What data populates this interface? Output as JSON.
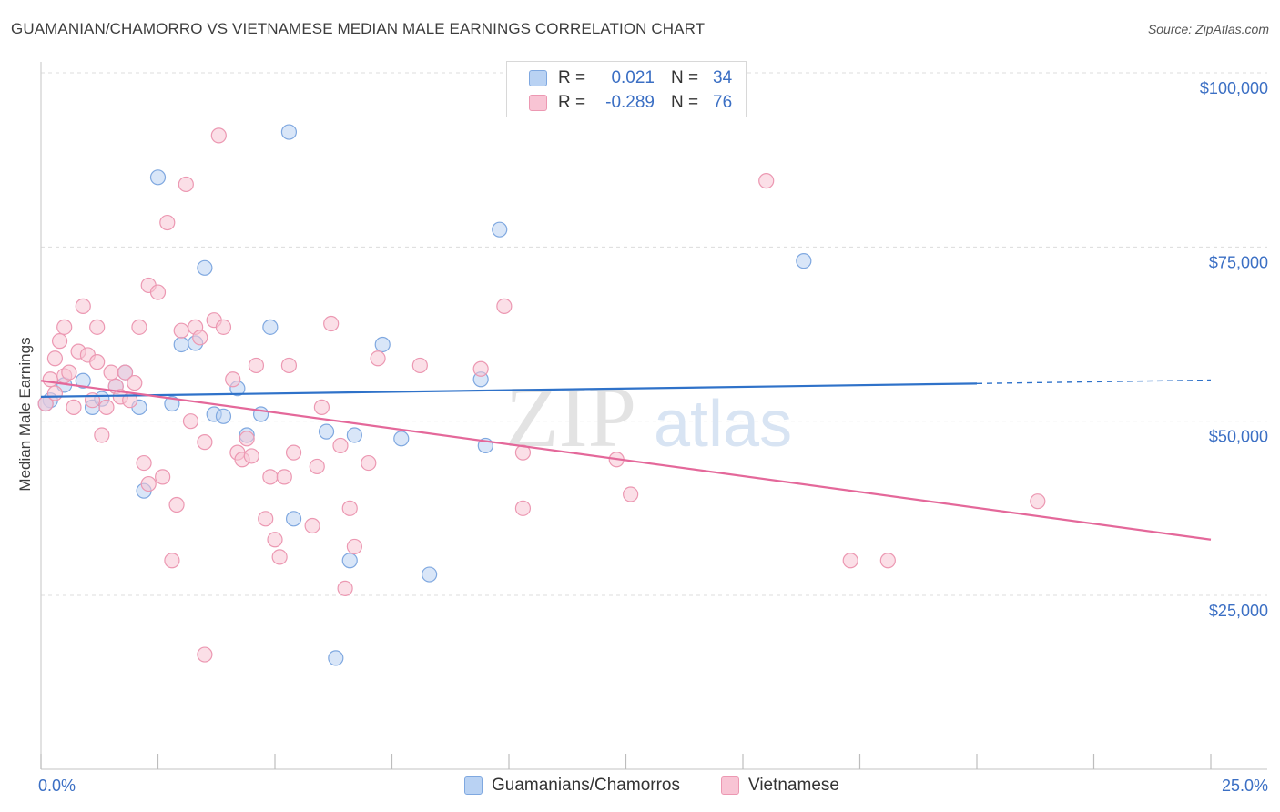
{
  "title": "GUAMANIAN/CHAMORRO VS VIETNAMESE MEDIAN MALE EARNINGS CORRELATION CHART",
  "source": "Source: ZipAtlas.com",
  "watermark": {
    "zip": "ZIP",
    "atlas": "atlas"
  },
  "colors": {
    "blue_fill": "#b9d2f3",
    "blue_stroke": "#7fa8e0",
    "blue_line": "#2f72c9",
    "pink_fill": "#f8c4d4",
    "pink_stroke": "#ec98b2",
    "pink_line": "#e4689a",
    "axis_text": "#3b6fc4"
  },
  "legend": {
    "rows": [
      {
        "r_label": "R =",
        "r_value": "0.021",
        "n_label": "N =",
        "n_value": "34"
      },
      {
        "r_label": "R =",
        "r_value": "-0.289",
        "n_label": "N =",
        "n_value": "76"
      }
    ]
  },
  "bottom_legend": {
    "series1": "Guamanians/Chamorros",
    "series2": "Vietnamese"
  },
  "chart_data": {
    "type": "scatter",
    "title": "GUAMANIAN/CHAMORRO VS VIETNAMESE MEDIAN MALE EARNINGS CORRELATION CHART",
    "xlabel": "",
    "ylabel": "Median Male Earnings",
    "xlim": [
      0,
      25
    ],
    "ylim": [
      5000,
      105000
    ],
    "x_tick_labels": [
      "0.0%",
      "25.0%"
    ],
    "y_ticks": [
      {
        "value": 25000,
        "label": "$25,000"
      },
      {
        "value": 50000,
        "label": "$50,000"
      },
      {
        "value": 75000,
        "label": "$75,000"
      },
      {
        "value": 100000,
        "label": "$100,000"
      }
    ],
    "grid": true,
    "series": [
      {
        "name": "Guamanians/Chamorros",
        "color": "blue",
        "trend": {
          "x0": 0,
          "y0": 53500,
          "x1": 20,
          "y1": 55400,
          "dash_to": 25,
          "dash_y": 55900
        },
        "points": [
          [
            0.2,
            53000
          ],
          [
            0.5,
            55200
          ],
          [
            0.9,
            55800
          ],
          [
            1.1,
            52000
          ],
          [
            1.3,
            53200
          ],
          [
            1.6,
            55000
          ],
          [
            1.8,
            57000
          ],
          [
            2.1,
            52000
          ],
          [
            2.2,
            40000
          ],
          [
            2.5,
            85000
          ],
          [
            2.8,
            52500
          ],
          [
            3.0,
            61000
          ],
          [
            3.3,
            61200
          ],
          [
            3.5,
            72000
          ],
          [
            3.7,
            51000
          ],
          [
            3.9,
            50700
          ],
          [
            4.2,
            54700
          ],
          [
            4.4,
            48000
          ],
          [
            4.7,
            51000
          ],
          [
            4.9,
            63500
          ],
          [
            5.3,
            91500
          ],
          [
            5.4,
            36000
          ],
          [
            6.1,
            48500
          ],
          [
            6.3,
            16000
          ],
          [
            6.6,
            30000
          ],
          [
            6.7,
            48000
          ],
          [
            7.3,
            61000
          ],
          [
            7.7,
            47500
          ],
          [
            8.3,
            28000
          ],
          [
            9.4,
            56000
          ],
          [
            9.5,
            46500
          ],
          [
            9.8,
            77500
          ],
          [
            16.3,
            73000
          ],
          [
            0.1,
            52500
          ]
        ]
      },
      {
        "name": "Vietnamese",
        "color": "pink",
        "trend": {
          "x0": 0,
          "y0": 55800,
          "x1": 25,
          "y1": 33000
        },
        "points": [
          [
            0.1,
            52500
          ],
          [
            0.2,
            56000
          ],
          [
            0.3,
            59000
          ],
          [
            0.4,
            61500
          ],
          [
            0.5,
            63500
          ],
          [
            0.5,
            56500
          ],
          [
            0.6,
            57000
          ],
          [
            0.7,
            52000
          ],
          [
            0.8,
            60000
          ],
          [
            0.9,
            66500
          ],
          [
            1.0,
            59500
          ],
          [
            1.1,
            53000
          ],
          [
            1.2,
            58500
          ],
          [
            1.2,
            63500
          ],
          [
            1.3,
            48000
          ],
          [
            1.4,
            52000
          ],
          [
            1.5,
            57000
          ],
          [
            1.6,
            55000
          ],
          [
            1.7,
            53500
          ],
          [
            1.8,
            57000
          ],
          [
            1.9,
            53000
          ],
          [
            2.0,
            55500
          ],
          [
            2.1,
            63500
          ],
          [
            2.2,
            44000
          ],
          [
            2.3,
            41000
          ],
          [
            2.3,
            69500
          ],
          [
            2.5,
            68500
          ],
          [
            2.6,
            42000
          ],
          [
            2.7,
            78500
          ],
          [
            2.8,
            30000
          ],
          [
            2.9,
            38000
          ],
          [
            3.0,
            63000
          ],
          [
            3.1,
            84000
          ],
          [
            3.2,
            50000
          ],
          [
            3.3,
            63500
          ],
          [
            3.4,
            62000
          ],
          [
            3.5,
            47000
          ],
          [
            3.5,
            16500
          ],
          [
            3.7,
            64500
          ],
          [
            3.8,
            91000
          ],
          [
            3.9,
            63500
          ],
          [
            4.1,
            56000
          ],
          [
            4.2,
            45500
          ],
          [
            4.3,
            44500
          ],
          [
            4.4,
            47500
          ],
          [
            4.5,
            45000
          ],
          [
            4.6,
            58000
          ],
          [
            4.8,
            36000
          ],
          [
            4.9,
            42000
          ],
          [
            5.0,
            33000
          ],
          [
            5.1,
            30500
          ],
          [
            5.2,
            42000
          ],
          [
            5.3,
            58000
          ],
          [
            5.4,
            45500
          ],
          [
            5.8,
            35000
          ],
          [
            5.9,
            43500
          ],
          [
            6.0,
            52000
          ],
          [
            6.2,
            64000
          ],
          [
            6.4,
            46500
          ],
          [
            6.5,
            26000
          ],
          [
            6.6,
            37500
          ],
          [
            6.7,
            32000
          ],
          [
            7.0,
            44000
          ],
          [
            7.2,
            59000
          ],
          [
            8.1,
            58000
          ],
          [
            9.4,
            57500
          ],
          [
            9.9,
            66500
          ],
          [
            10.3,
            37500
          ],
          [
            10.3,
            45500
          ],
          [
            12.3,
            44500
          ],
          [
            12.6,
            39500
          ],
          [
            15.5,
            84500
          ],
          [
            17.3,
            30000
          ],
          [
            18.1,
            30000
          ],
          [
            21.3,
            38500
          ],
          [
            0.3,
            54000
          ]
        ]
      }
    ]
  }
}
